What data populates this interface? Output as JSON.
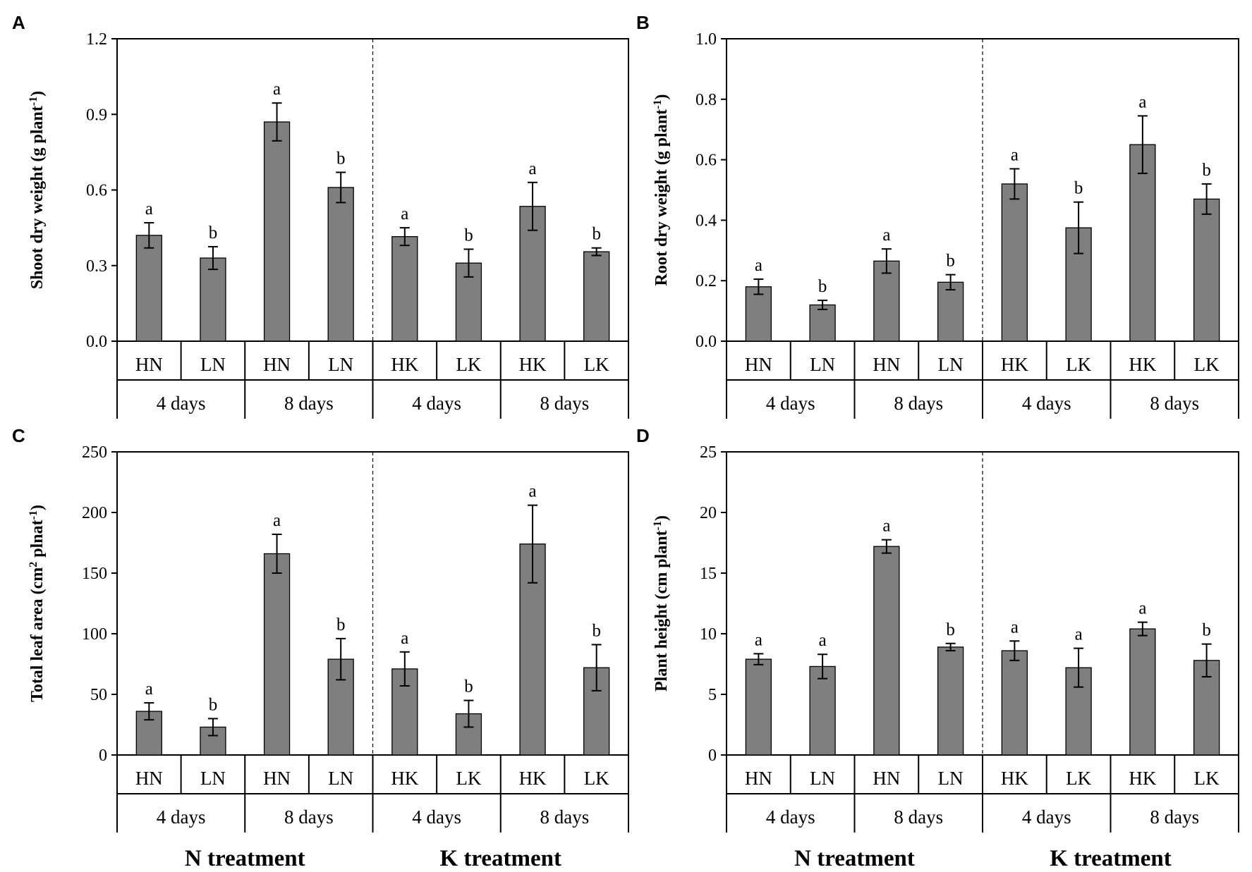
{
  "chart_data": [
    {
      "panel": "A",
      "type": "bar",
      "ylabel": "Shoot dry weight (g plant",
      "ylabel_sup": "-1",
      "ylabel_end": ")",
      "ylim": [
        0,
        1.2
      ],
      "yticks": [
        "0.0",
        "0.3",
        "0.6",
        "0.9",
        "1.2"
      ],
      "categories": [
        "HN",
        "LN",
        "HN",
        "LN",
        "HK",
        "LK",
        "HK",
        "LK"
      ],
      "groups": [
        "4 days",
        "8 days",
        "4 days",
        "8 days"
      ],
      "values": [
        0.42,
        0.33,
        0.87,
        0.61,
        0.415,
        0.31,
        0.535,
        0.355
      ],
      "errors": [
        0.05,
        0.045,
        0.075,
        0.06,
        0.035,
        0.055,
        0.095,
        0.015
      ],
      "labels": [
        "a",
        "b",
        "a",
        "b",
        "a",
        "b",
        "a",
        "b"
      ]
    },
    {
      "panel": "B",
      "type": "bar",
      "ylabel": "Root dry weight (g plant",
      "ylabel_sup": "-1",
      "ylabel_end": ")",
      "ylim": [
        0,
        1.0
      ],
      "yticks": [
        "0.0",
        "0.2",
        "0.4",
        "0.6",
        "0.8",
        "1.0"
      ],
      "categories": [
        "HN",
        "LN",
        "HN",
        "LN",
        "HK",
        "LK",
        "HK",
        "LK"
      ],
      "groups": [
        "4 days",
        "8 days",
        "4 days",
        "8 days"
      ],
      "values": [
        0.18,
        0.12,
        0.265,
        0.195,
        0.52,
        0.375,
        0.65,
        0.47
      ],
      "errors": [
        0.025,
        0.015,
        0.04,
        0.025,
        0.05,
        0.085,
        0.095,
        0.05
      ],
      "labels": [
        "a",
        "b",
        "a",
        "b",
        "a",
        "b",
        "a",
        "b"
      ]
    },
    {
      "panel": "C",
      "type": "bar",
      "ylabel": "Total leaf area (cm",
      "ylabel_sup": "2",
      "ylabel_mid": " plnat",
      "ylabel_sup2": "-1",
      "ylabel_end": ")",
      "ylim": [
        0,
        250
      ],
      "yticks": [
        "0",
        "50",
        "100",
        "150",
        "200",
        "250"
      ],
      "categories": [
        "HN",
        "LN",
        "HN",
        "LN",
        "HK",
        "LK",
        "HK",
        "LK"
      ],
      "groups": [
        "4 days",
        "8 days",
        "4 days",
        "8 days"
      ],
      "values": [
        36,
        23,
        166,
        79,
        71,
        34,
        174,
        72
      ],
      "errors": [
        7,
        7,
        16,
        17,
        14,
        11,
        32,
        19
      ],
      "labels": [
        "a",
        "b",
        "a",
        "b",
        "a",
        "b",
        "a",
        "b"
      ],
      "treatments": [
        "N treatment",
        "K treatment"
      ]
    },
    {
      "panel": "D",
      "type": "bar",
      "ylabel": "Plant height (cm plant",
      "ylabel_sup": "-1",
      "ylabel_end": ")",
      "ylim": [
        0,
        25
      ],
      "yticks": [
        "0",
        "5",
        "10",
        "15",
        "20",
        "25"
      ],
      "categories": [
        "HN",
        "LN",
        "HN",
        "LN",
        "HK",
        "LK",
        "HK",
        "LK"
      ],
      "groups": [
        "4 days",
        "8 days",
        "4 days",
        "8 days"
      ],
      "values": [
        7.9,
        7.3,
        17.2,
        8.9,
        8.6,
        7.2,
        10.4,
        7.8
      ],
      "errors": [
        0.45,
        1.0,
        0.55,
        0.3,
        0.8,
        1.6,
        0.55,
        1.35
      ],
      "labels": [
        "a",
        "a",
        "a",
        "b",
        "a",
        "a",
        "a",
        "b"
      ],
      "treatments": [
        "N treatment",
        "K treatment"
      ]
    }
  ]
}
